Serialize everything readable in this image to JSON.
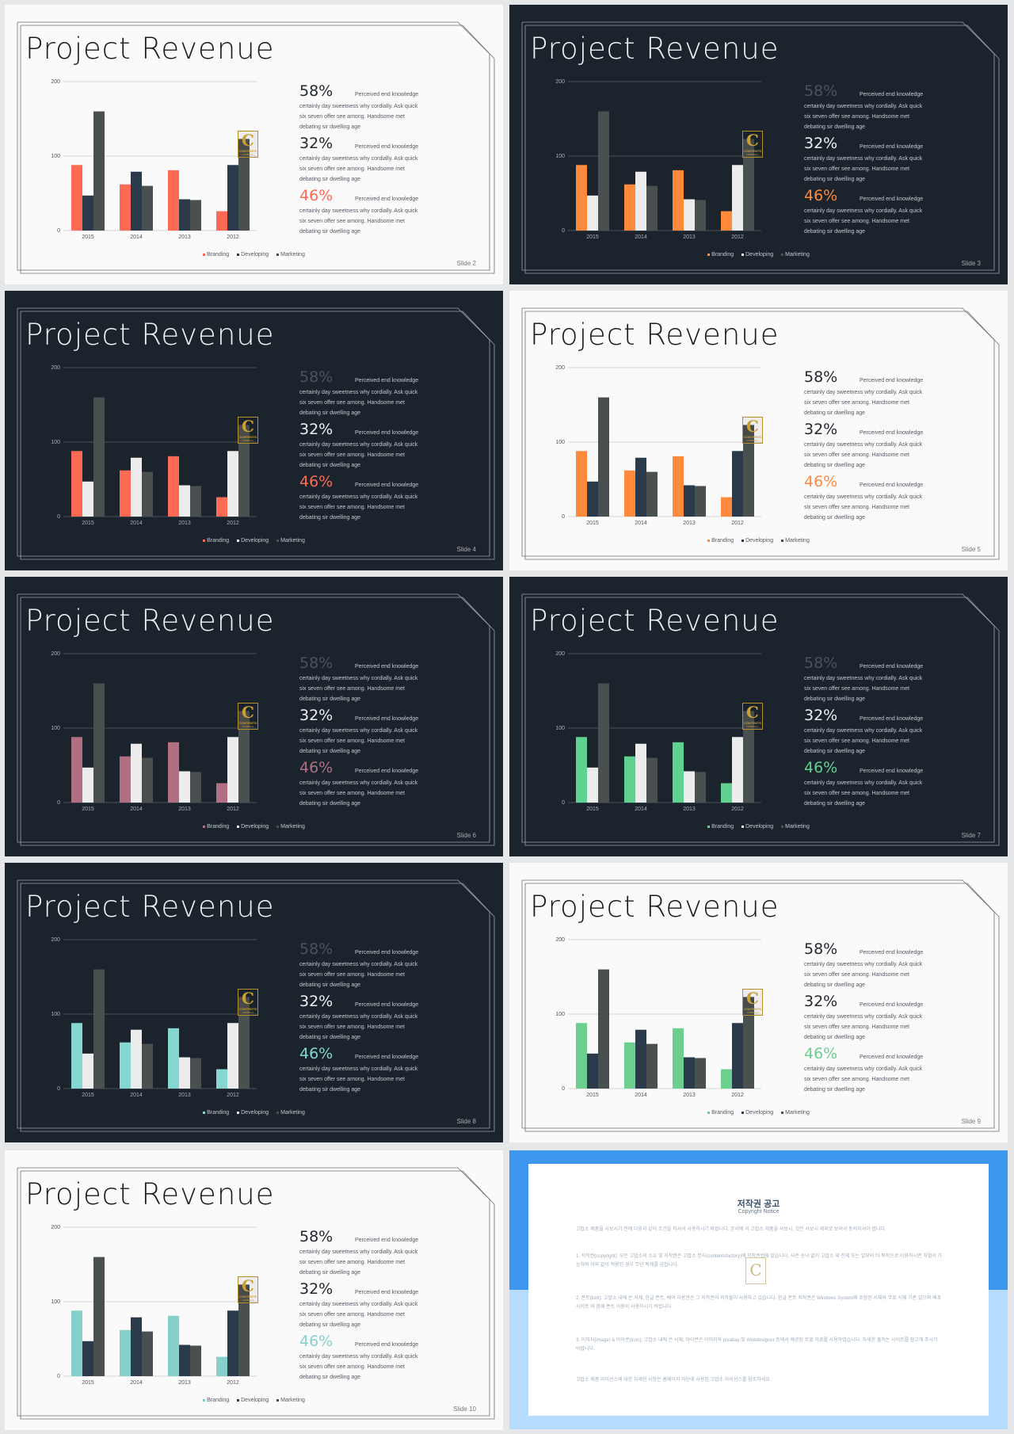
{
  "slide_title": "Project Revenue",
  "stats": [
    {
      "pct": "58%",
      "lead": "Perceived end knowledge",
      "body": [
        "certainly day sweetness why cordially. Ask quick",
        "six seven offer see among. Handsome met",
        "debating sir dwelling age"
      ]
    },
    {
      "pct": "32%",
      "lead": "Perceived end knowledge",
      "body": [
        "certainly day sweetness why cordially. Ask quick",
        "six seven offer see among. Handsome met",
        "debating sir dwelling age"
      ]
    },
    {
      "pct": "46%",
      "lead": "Perceived end knowledge",
      "body": [
        "certainly day sweetness why cordially. Ask quick",
        "six seven offer see among. Handsome met",
        "debating sir dwelling age"
      ]
    }
  ],
  "chart_data": {
    "type": "bar",
    "categories": [
      "2015",
      "2014",
      "2013",
      "2012"
    ],
    "series": [
      {
        "name": "Branding",
        "values": [
          88,
          62,
          81,
          26
        ]
      },
      {
        "name": "Developing",
        "values": [
          47,
          79,
          42,
          88
        ]
      },
      {
        "name": "Marketing",
        "values": [
          160,
          60,
          41,
          123
        ]
      }
    ],
    "yticks": [
      "0",
      "100",
      "200"
    ],
    "ylim": [
      0,
      200
    ],
    "gridline_at": 100
  },
  "logo": {
    "letter": "C",
    "line1": "CONTENTS",
    "line2": "COMPANY"
  },
  "slides": [
    {
      "num_label": "Slide  2",
      "theme": "light",
      "accent": "#ff6a55",
      "dev_color": "#2b3a4b",
      "mkt_color": "#4a504f",
      "muted_first": false
    },
    {
      "num_label": "Slide  3",
      "theme": "dark",
      "accent": "#ff8a3c",
      "dev_color": "#ececec",
      "mkt_color": "#4a504f",
      "muted_first": true
    },
    {
      "num_label": "Slide  4",
      "theme": "dark",
      "accent": "#ff6a55",
      "dev_color": "#ececec",
      "mkt_color": "#4a504f",
      "muted_first": true
    },
    {
      "num_label": "Slide  5",
      "theme": "light",
      "accent": "#ff8a3c",
      "dev_color": "#2b3a4b",
      "mkt_color": "#4a504f",
      "muted_first": false
    },
    {
      "num_label": "Slide  6",
      "theme": "dark",
      "accent": "#b07082",
      "dev_color": "#ececec",
      "mkt_color": "#4a504f",
      "muted_first": true
    },
    {
      "num_label": "Slide  7",
      "theme": "dark",
      "accent": "#5fd190",
      "dev_color": "#ececec",
      "mkt_color": "#4a504f",
      "muted_first": true
    },
    {
      "num_label": "Slide  8",
      "theme": "dark",
      "accent": "#86d6d2",
      "dev_color": "#ececec",
      "mkt_color": "#4a504f",
      "muted_first": true
    },
    {
      "num_label": "Slide  9",
      "theme": "light",
      "accent": "#6ccf8f",
      "dev_color": "#2b3a4b",
      "mkt_color": "#4a504f",
      "muted_first": false
    },
    {
      "num_label": "Slide  10",
      "theme": "light",
      "accent": "#86d0cc",
      "dev_color": "#2b3a4b",
      "mkt_color": "#4a504f",
      "muted_first": false
    }
  ],
  "notice": {
    "title": "저작권 공고",
    "subtitle": "Copyright Notice",
    "intro": "고맙소 제품을 사보시기 전에 다음과 같이 조건을 하셔서 사용하시기 바랍니다. 본서에 이 고맙소 제품을 사보시, 것은 사보시 제외로 보여서 동의하셔야 합니다.",
    "p1": "1. 저작권(copyright): 모든 고맙소의 소유 및 저작권은 고맙소 본사(contentsfactory)에 저작권법에 있습니다. 사전 승낙 없이 고맙소 외 전체 또는 일부의 타 목적으로 이용하시면 처벌이 가능하며 이와 같이 적용된 경우 무단 복제를 금합니다.",
    "p2": "2. 폰트(font): 고맙소 내에 쓴 서체, 한글 폰트, 배여 이용권은 그 저작권의 저작물이 사용하고 있습니다. 한글 폰트 저작권은 Windows System에 포함된 서체와 무료 서체 기준 있으며 배포 사이트 와 함께 폰트 이용이 사용하시기 바랍니다.",
    "p3": "3. 이미지(image) & 아이콘(icon): 고맙소 내에 쓴 서체, 아이콘은 이미지와 pixabay 및 Webdesigner 등에서 제공된 무료 자료를 사용하였습니다. 자세한 출처는 사이트를 참고해 주시기 바랍니다.",
    "outro": "고맙소 제품 라이선스에 대한 자세한 사항은 홈페이지 하단에 사용된 고맙소 라이선스를 참조하세요."
  }
}
